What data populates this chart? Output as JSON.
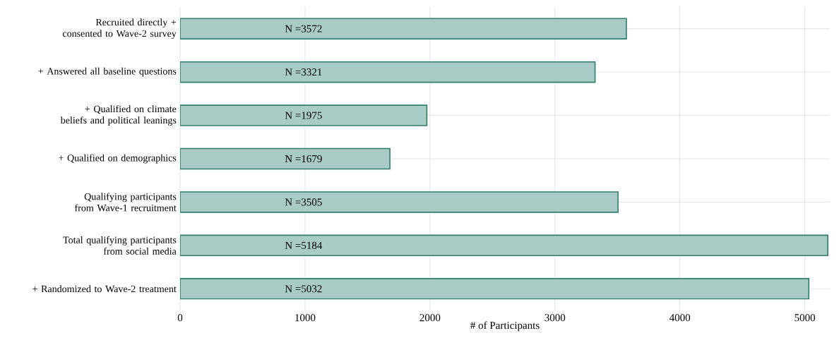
{
  "chart_data": {
    "type": "bar",
    "orientation": "horizontal",
    "xlabel": "# of Participants",
    "categories": [
      "Recruited directly + consented to Wave-2 survey",
      "+ Answered all baseline questions",
      "+ Qualified on climate beliefs and political leanings",
      "+ Qualified on demographics",
      "Qualifying participants from Wave-1 recruitment",
      "Total qualifying participants from social media",
      "+ Randomized to Wave-2 treatment"
    ],
    "values": [
      3572,
      3321,
      1975,
      1679,
      3505,
      5184,
      5032
    ],
    "value_labels": [
      "N =3572",
      "N =3321",
      "N =1975",
      "N =1679",
      "N =3505",
      "N =5184",
      "N =5032"
    ],
    "color": "#a8cbc5",
    "xlim": [
      0,
      5200
    ],
    "xticks": [
      0,
      1000,
      2000,
      3000,
      4000,
      5000
    ],
    "grid": true
  }
}
